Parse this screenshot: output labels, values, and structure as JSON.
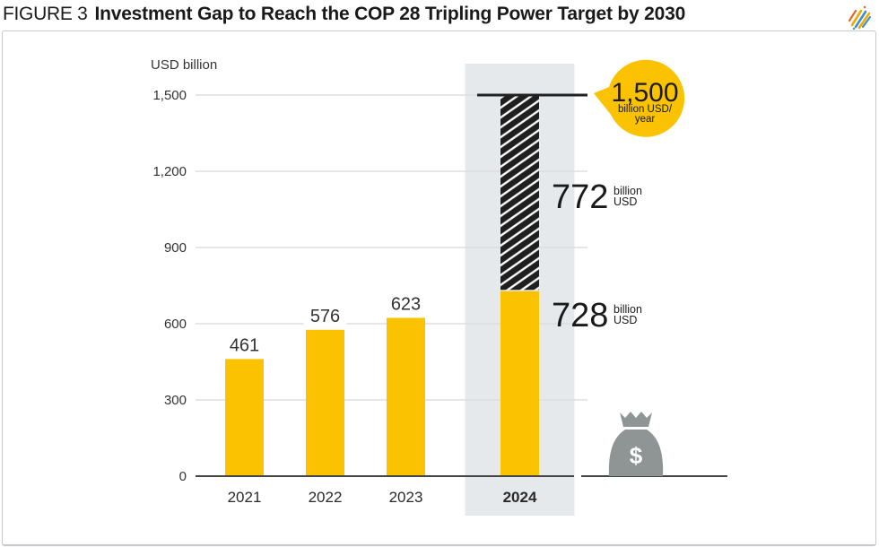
{
  "header": {
    "figure_label": "FIGURE 3",
    "title": "Investment Gap to Reach the COP 28 Tripling Power Target by 2030",
    "logo_icon": "striped-logo-icon"
  },
  "colors": {
    "bar": "#fac200",
    "gap": "#1f1f1f",
    "highlight_band": "#e6e9ec",
    "target_bubble": "#fac200",
    "money_bag": "#8f9595",
    "gridline": "#dedede",
    "axis": "#444444"
  },
  "chart_data": {
    "type": "bar",
    "title": "Investment Gap to Reach the COP 28 Tripling Power Target by 2030",
    "ylabel": "USD billion",
    "xlabel": "",
    "ylim": [
      0,
      1500
    ],
    "yticks": [
      0,
      300,
      600,
      900,
      1200,
      1500
    ],
    "ytick_labels": [
      "0",
      "300",
      "600",
      "900",
      "1,200",
      "1,500"
    ],
    "grid": true,
    "categories": [
      "2021",
      "2022",
      "2023",
      "2024"
    ],
    "highlighted_category": "2024",
    "series": [
      {
        "name": "Investment",
        "values": [
          461,
          576,
          623,
          728
        ],
        "labels": [
          "461",
          "576",
          "623",
          ""
        ]
      },
      {
        "name": "Gap",
        "values": [
          0,
          0,
          0,
          772
        ],
        "pattern": "diagonal-hatch"
      }
    ],
    "target": {
      "value": 1500,
      "label_value": "1,500",
      "label_unit": "billion USD/ year"
    },
    "annotations": [
      {
        "value_text": "772",
        "unit_line1": "billion",
        "unit_line2": "USD",
        "refers_to": "Gap 2024"
      },
      {
        "value_text": "728",
        "unit_line1": "billion",
        "unit_line2": "USD",
        "refers_to": "Investment 2024"
      }
    ],
    "decoration": {
      "icon": "money-bag-icon",
      "symbol": "$"
    }
  }
}
